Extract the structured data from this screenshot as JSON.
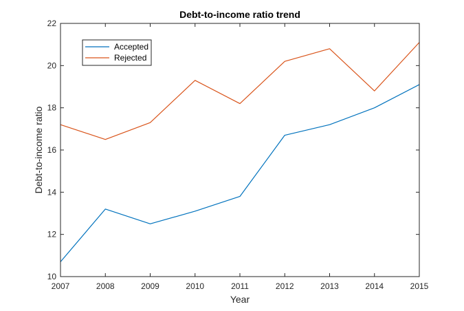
{
  "chart_data": {
    "type": "line",
    "title": "Debt-to-income ratio trend",
    "xlabel": "Year",
    "ylabel": "Debt-to-income ratio",
    "x": [
      2007,
      2008,
      2009,
      2010,
      2011,
      2012,
      2013,
      2014,
      2015
    ],
    "xlim": [
      2007,
      2015
    ],
    "ylim": [
      10,
      22
    ],
    "xticks": [
      2007,
      2008,
      2009,
      2010,
      2011,
      2012,
      2013,
      2014,
      2015
    ],
    "yticks": [
      10,
      12,
      14,
      16,
      18,
      20,
      22
    ],
    "grid": false,
    "legend_position": "top-left",
    "series": [
      {
        "name": "Accepted",
        "color": "#0072BD",
        "values": [
          10.7,
          13.2,
          12.5,
          13.1,
          13.8,
          16.7,
          17.2,
          18.0,
          19.1
        ]
      },
      {
        "name": "Rejected",
        "color": "#D95319",
        "values": [
          17.2,
          16.5,
          17.3,
          19.3,
          18.2,
          20.2,
          20.8,
          18.8,
          21.1
        ]
      }
    ]
  }
}
